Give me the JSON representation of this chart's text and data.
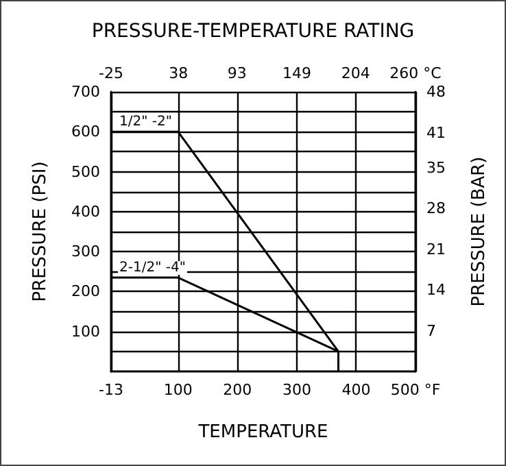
{
  "chart_data": {
    "type": "line",
    "title": "PRESSURE-TEMPERATURE RATING",
    "xlabel": "TEMPERATURE",
    "ylabel": "PRESSURE (PSI)",
    "y2label": "PRESSURE (BAR)",
    "xlim": [
      -13,
      500
    ],
    "xticks": [
      -13,
      100,
      200,
      300,
      400,
      {
        "value": 500,
        "label": "500 °F"
      }
    ],
    "x2lim": [
      -25,
      260
    ],
    "x2ticks": [
      -25,
      38,
      93,
      149,
      204,
      {
        "value": 260,
        "label": "260 °C"
      }
    ],
    "ylim": [
      0,
      700
    ],
    "yticks": [
      {
        "value": 50,
        "label": null
      },
      100,
      {
        "value": 150,
        "label": null
      },
      200,
      {
        "value": 250,
        "label": null
      },
      300,
      {
        "value": 350,
        "label": null
      },
      400,
      {
        "value": 450,
        "label": null
      },
      500,
      {
        "value": 550,
        "label": null
      },
      600,
      {
        "value": 650,
        "label": null
      },
      700
    ],
    "y2lim": [
      0,
      48
    ],
    "y2ticks": [
      7,
      14,
      21,
      28,
      35,
      41,
      48
    ],
    "grid": true,
    "legend": false,
    "marker": "none",
    "line_style": "solid",
    "series": [
      {
        "name": "1/2\" -2\"",
        "color": "#000000",
        "x": [
          -13,
          100,
          370,
          370
        ],
        "values": [
          600,
          600,
          50,
          0
        ]
      },
      {
        "name": "2-1/2\" -4\"",
        "color": "#000000",
        "x": [
          -13,
          100,
          370
        ],
        "values": [
          235,
          235,
          50
        ]
      }
    ]
  }
}
